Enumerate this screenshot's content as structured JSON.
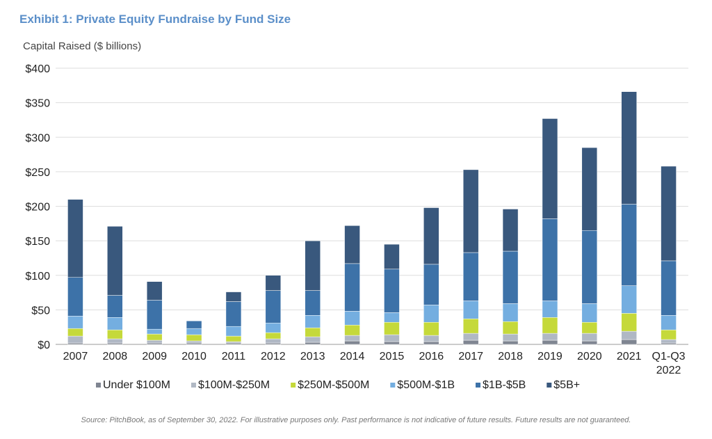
{
  "title": "Exhibit 1: Private Equity Fundraise by Fund Size",
  "source": "Source: PitchBook, as of September 30, 2022. For illustrative purposes only. Past performance is not indicative of future results. Future results are not guaranteed.",
  "chart_data": {
    "type": "bar",
    "stacked": true,
    "ylabel": "Capital Raised ($ billions)",
    "ylim": [
      0,
      400
    ],
    "yticks": [
      "$0",
      "$50",
      "$100",
      "$150",
      "$200",
      "$250",
      "$300",
      "$350",
      "$400"
    ],
    "grid": true,
    "legend": "bottom",
    "categories": [
      "2007",
      "2008",
      "2009",
      "2010",
      "2011",
      "2012",
      "2013",
      "2014",
      "2015",
      "2016",
      "2017",
      "2018",
      "2019",
      "2020",
      "2021",
      "Q1-Q3\n2022"
    ],
    "series": [
      {
        "name": "Under $100M",
        "color": "#7f8591",
        "values": [
          2,
          2,
          2,
          2,
          2,
          2,
          3,
          5,
          4,
          4,
          6,
          5,
          6,
          5,
          7,
          2
        ]
      },
      {
        "name": "$100M-$250M",
        "color": "#b0b8c4",
        "values": [
          10,
          6,
          4,
          3,
          2,
          6,
          8,
          8,
          10,
          9,
          10,
          10,
          10,
          11,
          12,
          5
        ]
      },
      {
        "name": "$250M-$500M",
        "color": "#c5d93a",
        "values": [
          11,
          13,
          9,
          9,
          8,
          9,
          13,
          15,
          18,
          19,
          21,
          18,
          23,
          16,
          26,
          14
        ]
      },
      {
        "name": "$500M-$1B",
        "color": "#74aee0",
        "values": [
          18,
          18,
          7,
          9,
          14,
          14,
          18,
          20,
          14,
          25,
          26,
          26,
          24,
          27,
          40,
          21
        ]
      },
      {
        "name": "$1B-$5B",
        "color": "#3d72a8",
        "values": [
          56,
          32,
          42,
          11,
          36,
          47,
          36,
          69,
          63,
          59,
          70,
          76,
          119,
          106,
          118,
          79
        ]
      },
      {
        "name": "$5B+",
        "color": "#39587d",
        "values": [
          113,
          100,
          27,
          0,
          14,
          22,
          72,
          55,
          36,
          82,
          120,
          61,
          145,
          120,
          163,
          137
        ]
      }
    ]
  }
}
